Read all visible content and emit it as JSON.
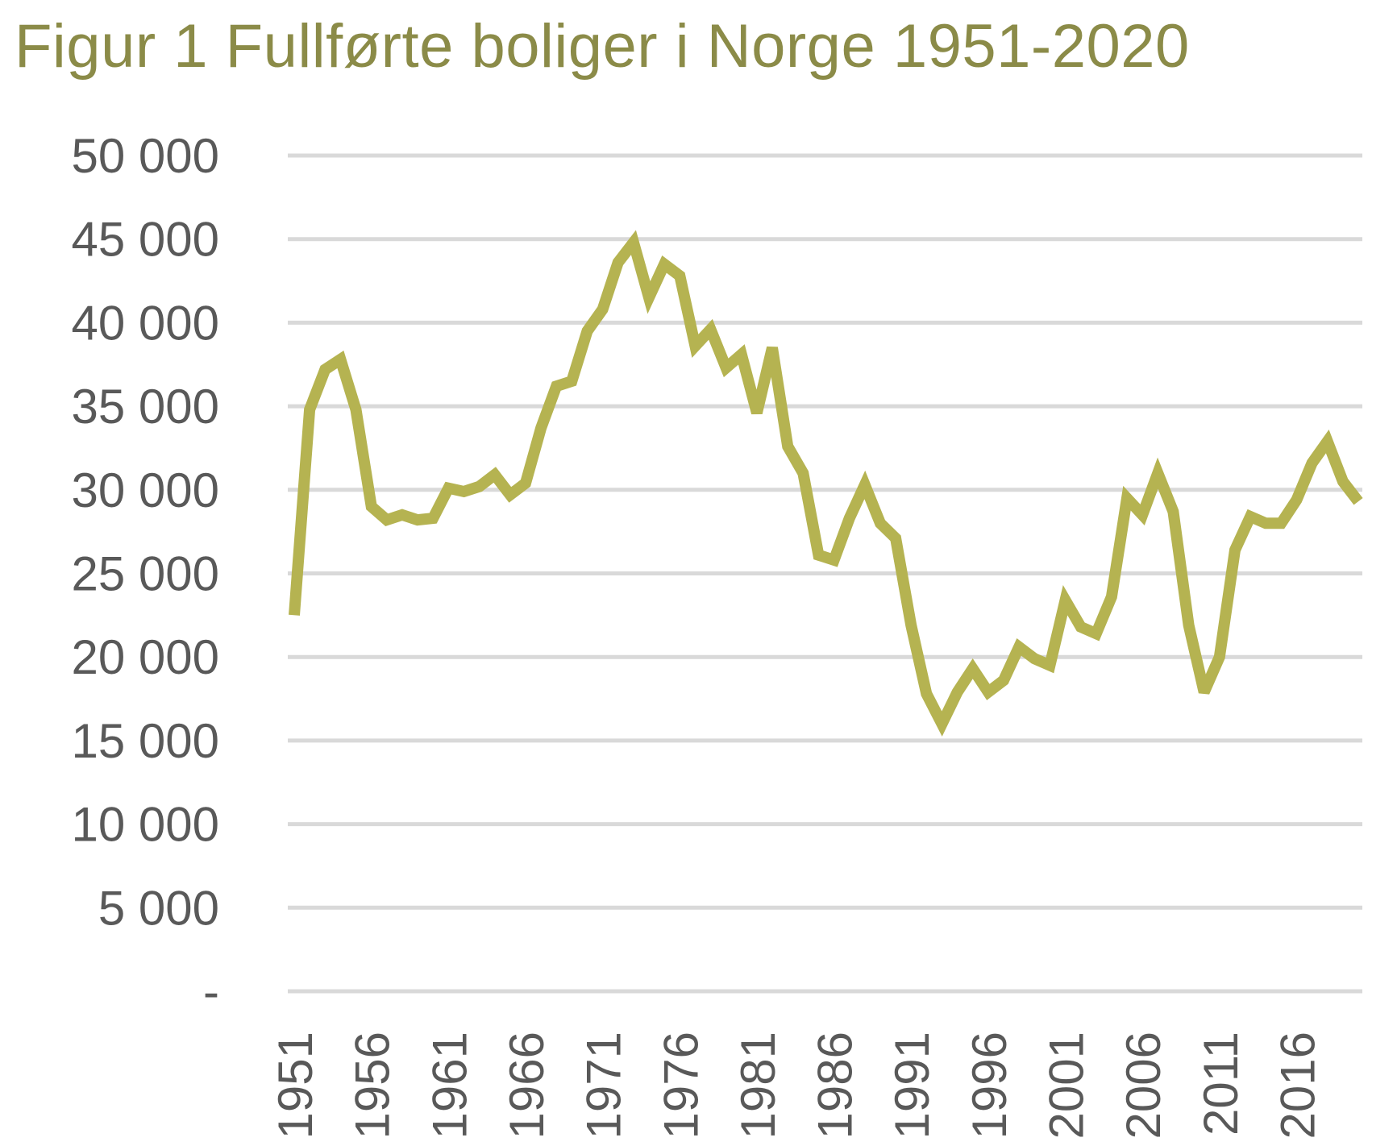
{
  "chart_data": {
    "type": "line",
    "title": "Figur 1 Fullførte boliger i Norge 1951-2020",
    "xlabel": "",
    "ylabel": "",
    "ylim": [
      0,
      50000
    ],
    "yticks": [
      {
        "value": 0,
        "label": "-"
      },
      {
        "value": 5000,
        "label": "5 000"
      },
      {
        "value": 10000,
        "label": "10 000"
      },
      {
        "value": 15000,
        "label": "15 000"
      },
      {
        "value": 20000,
        "label": "20 000"
      },
      {
        "value": 25000,
        "label": "25 000"
      },
      {
        "value": 30000,
        "label": "30 000"
      },
      {
        "value": 35000,
        "label": "35 000"
      },
      {
        "value": 40000,
        "label": "40 000"
      },
      {
        "value": 45000,
        "label": "45 000"
      },
      {
        "value": 50000,
        "label": "50 000"
      }
    ],
    "xticks": [
      "1951",
      "1956",
      "1961",
      "1966",
      "1971",
      "1976",
      "1981",
      "1986",
      "1991",
      "1996",
      "2001",
      "2006",
      "2011",
      "2016"
    ],
    "grid": true,
    "legend": "none",
    "color": "#b5b351",
    "x": [
      1951,
      1952,
      1953,
      1954,
      1955,
      1956,
      1957,
      1958,
      1959,
      1960,
      1961,
      1962,
      1963,
      1964,
      1965,
      1966,
      1967,
      1968,
      1969,
      1970,
      1971,
      1972,
      1973,
      1974,
      1975,
      1976,
      1977,
      1978,
      1979,
      1980,
      1981,
      1982,
      1983,
      1984,
      1985,
      1986,
      1987,
      1988,
      1989,
      1990,
      1991,
      1992,
      1993,
      1994,
      1995,
      1996,
      1997,
      1998,
      1999,
      2000,
      2001,
      2002,
      2003,
      2004,
      2005,
      2006,
      2007,
      2008,
      2009,
      2010,
      2011,
      2012,
      2013,
      2014,
      2015,
      2016,
      2017,
      2018,
      2019,
      2020
    ],
    "y": [
      22500,
      34800,
      37200,
      37800,
      34800,
      29000,
      28200,
      28500,
      28200,
      28300,
      30100,
      29900,
      30200,
      30900,
      29700,
      30400,
      33700,
      36200,
      36500,
      39500,
      40800,
      43600,
      44800,
      41500,
      43500,
      42800,
      38600,
      39600,
      37300,
      38100,
      34600,
      38500,
      32600,
      31000,
      26100,
      25800,
      28300,
      30300,
      28000,
      27100,
      21900,
      17800,
      16000,
      17900,
      19300,
      17900,
      18600,
      20600,
      19900,
      19500,
      23400,
      21800,
      21400,
      23600,
      29500,
      28500,
      31000,
      28700,
      21900,
      17900,
      20000,
      26400,
      28400,
      28000,
      28000,
      29400,
      31600,
      32900,
      30500,
      29300
    ]
  }
}
